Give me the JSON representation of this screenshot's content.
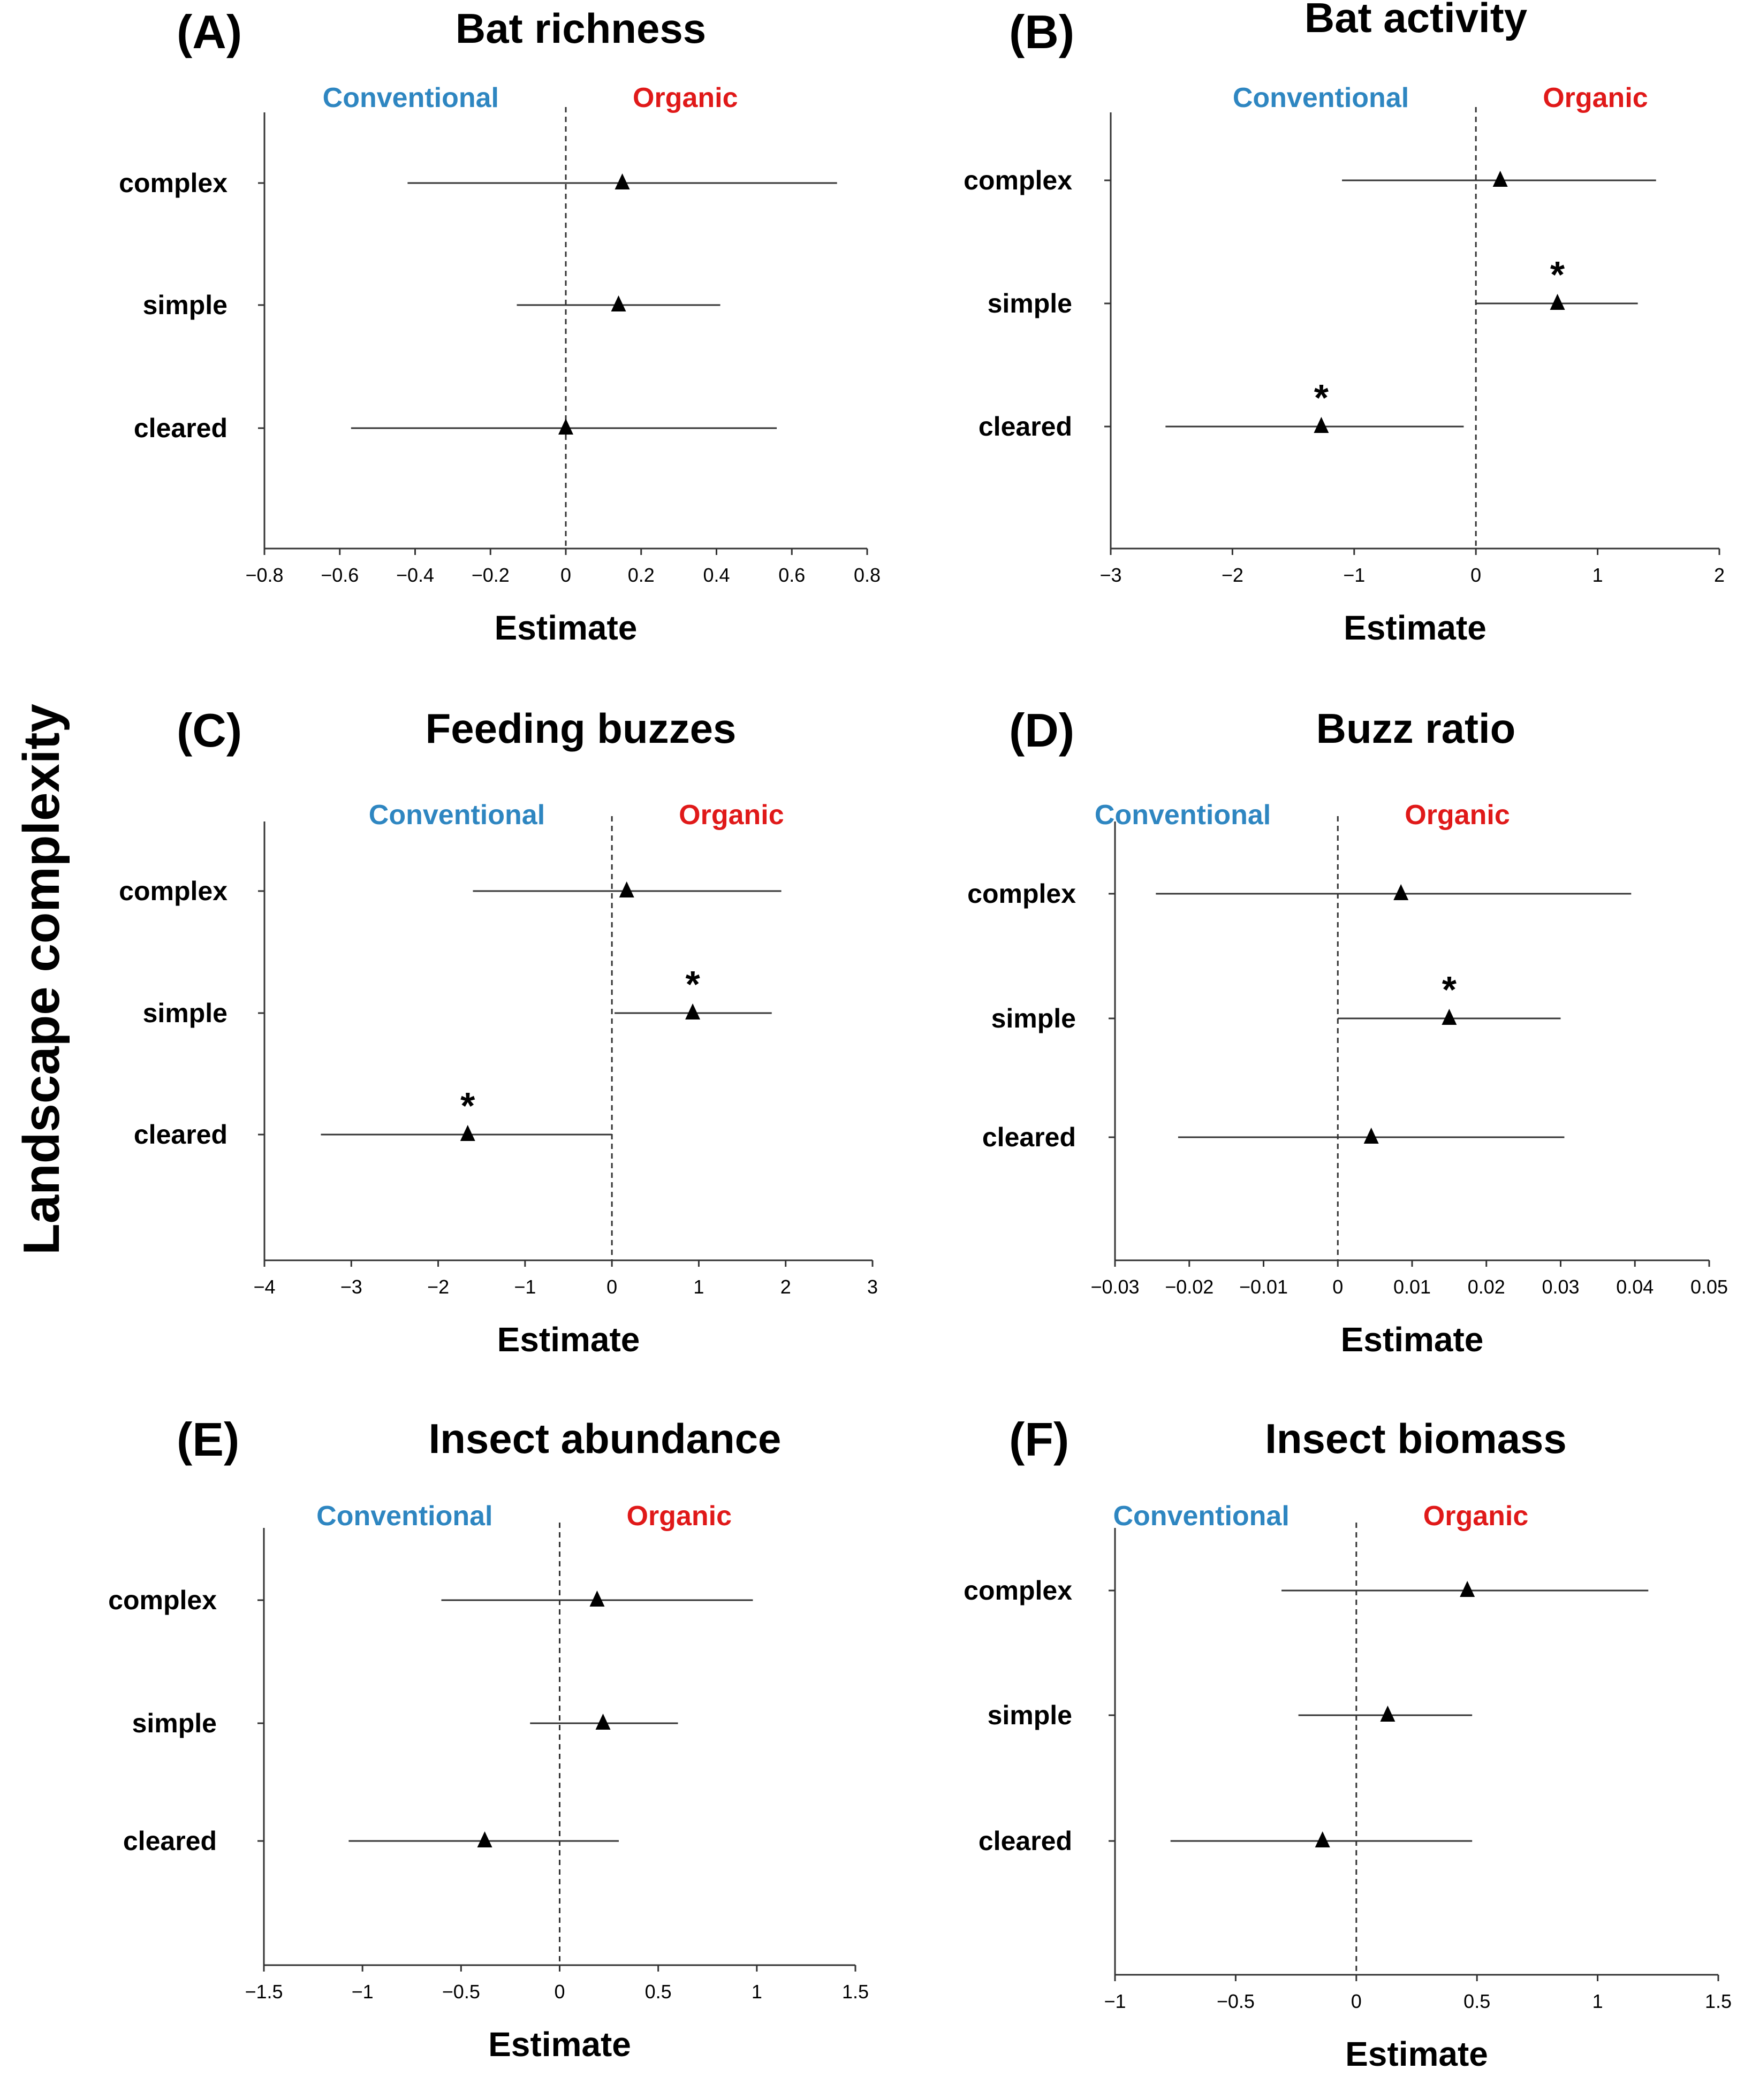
{
  "figure": {
    "y_title": "Landscape complexity",
    "x_title": "Estimate",
    "side_labels": {
      "conventional": "Conventional",
      "organic": "Organic"
    },
    "colors": {
      "conventional": "#2E86C1",
      "organic": "#E01919",
      "axis": "#333333",
      "marker": "#000000"
    }
  },
  "chart_data": [
    {
      "type": "forest",
      "letter": "(A)",
      "title": "Bat richness",
      "categories": [
        "complex",
        "simple",
        "cleared"
      ],
      "estimates": [
        0.15,
        0.14,
        0.0
      ],
      "ci_low": [
        -0.42,
        -0.13,
        -0.57
      ],
      "ci_high": [
        0.72,
        0.41,
        0.56
      ],
      "significant": [
        false,
        false,
        false
      ],
      "xlim": [
        -0.8,
        0.8
      ],
      "ticks": [
        -0.8,
        -0.6,
        -0.4,
        -0.2,
        0,
        0.2,
        0.4,
        0.6,
        0.8
      ],
      "tick_labels": [
        "−0.8",
        "−0.6",
        "−0.4",
        "−0.2",
        "0",
        "0.2",
        "0.4",
        "0.6",
        "0.8"
      ],
      "xlabel": "Estimate"
    },
    {
      "type": "forest",
      "letter": "(B)",
      "title": "Bat activity",
      "categories": [
        "complex",
        "simple",
        "cleared"
      ],
      "estimates": [
        0.2,
        0.67,
        -1.27
      ],
      "ci_low": [
        -1.1,
        0.0,
        -2.55
      ],
      "ci_high": [
        1.48,
        1.33,
        -0.1
      ],
      "significant": [
        false,
        true,
        true
      ],
      "xlim": [
        -3,
        2
      ],
      "ticks": [
        -3,
        -2,
        -1,
        0,
        1,
        2
      ],
      "tick_labels": [
        "−3",
        "−2",
        "−1",
        "0",
        "1",
        "2"
      ],
      "xlabel": "Estimate"
    },
    {
      "type": "forest",
      "letter": "(C)",
      "title": "Feeding buzzes",
      "categories": [
        "complex",
        "simple",
        "cleared"
      ],
      "estimates": [
        0.17,
        0.93,
        -1.66
      ],
      "ci_low": [
        -1.6,
        0.03,
        -3.35
      ],
      "ci_high": [
        1.95,
        1.84,
        0.0
      ],
      "significant": [
        false,
        true,
        true
      ],
      "xlim": [
        -4,
        3
      ],
      "ticks": [
        -4,
        -3,
        -2,
        -1,
        0,
        1,
        2,
        3
      ],
      "tick_labels": [
        "−4",
        "−3",
        "−2",
        "−1",
        "0",
        "1",
        "2",
        "3"
      ],
      "xlabel": "Estimate"
    },
    {
      "type": "forest",
      "letter": "(D)",
      "title": "Buzz ratio",
      "categories": [
        "complex",
        "simple",
        "cleared"
      ],
      "estimates": [
        0.0085,
        0.015,
        0.0045
      ],
      "ci_low": [
        -0.0245,
        0.0,
        -0.0215
      ],
      "ci_high": [
        0.0395,
        0.03,
        0.0305
      ],
      "significant": [
        false,
        true,
        false
      ],
      "xlim": [
        -0.03,
        0.05
      ],
      "ticks": [
        -0.03,
        -0.02,
        -0.01,
        0,
        0.01,
        0.02,
        0.03,
        0.04,
        0.05
      ],
      "tick_labels": [
        "−0.03",
        "−0.02",
        "−0.01",
        "0",
        "0.01",
        "0.02",
        "0.03",
        "0.04",
        "0.05"
      ],
      "xlabel": "Estimate"
    },
    {
      "type": "forest",
      "letter": "(E)",
      "title": "Insect abundance",
      "categories": [
        "complex",
        "simple",
        "cleared"
      ],
      "estimates": [
        0.19,
        0.22,
        -0.38
      ],
      "ci_low": [
        -0.6,
        -0.15,
        -1.07
      ],
      "ci_high": [
        0.98,
        0.6,
        0.3
      ],
      "significant": [
        false,
        false,
        false
      ],
      "xlim": [
        -1.5,
        1.5
      ],
      "ticks": [
        -1.5,
        -1,
        -0.5,
        0,
        0.5,
        1,
        1.5
      ],
      "tick_labels": [
        "−1.5",
        "−1",
        "−0.5",
        "0",
        "0.5",
        "1",
        "1.5"
      ],
      "xlabel": "Estimate"
    },
    {
      "type": "forest",
      "letter": "(F)",
      "title": "Insect biomass",
      "categories": [
        "complex",
        "simple",
        "cleared"
      ],
      "estimates": [
        0.46,
        0.13,
        -0.14
      ],
      "ci_low": [
        -0.31,
        -0.24,
        -0.77
      ],
      "ci_high": [
        1.21,
        0.48,
        0.48
      ],
      "significant": [
        false,
        false,
        false
      ],
      "xlim": [
        -1,
        1.5
      ],
      "ticks": [
        -1,
        -0.5,
        0,
        0.5,
        1,
        1.5
      ],
      "tick_labels": [
        "−1",
        "−0.5",
        "0",
        "0.5",
        "1",
        "1.5"
      ],
      "xlabel": "Estimate"
    }
  ]
}
